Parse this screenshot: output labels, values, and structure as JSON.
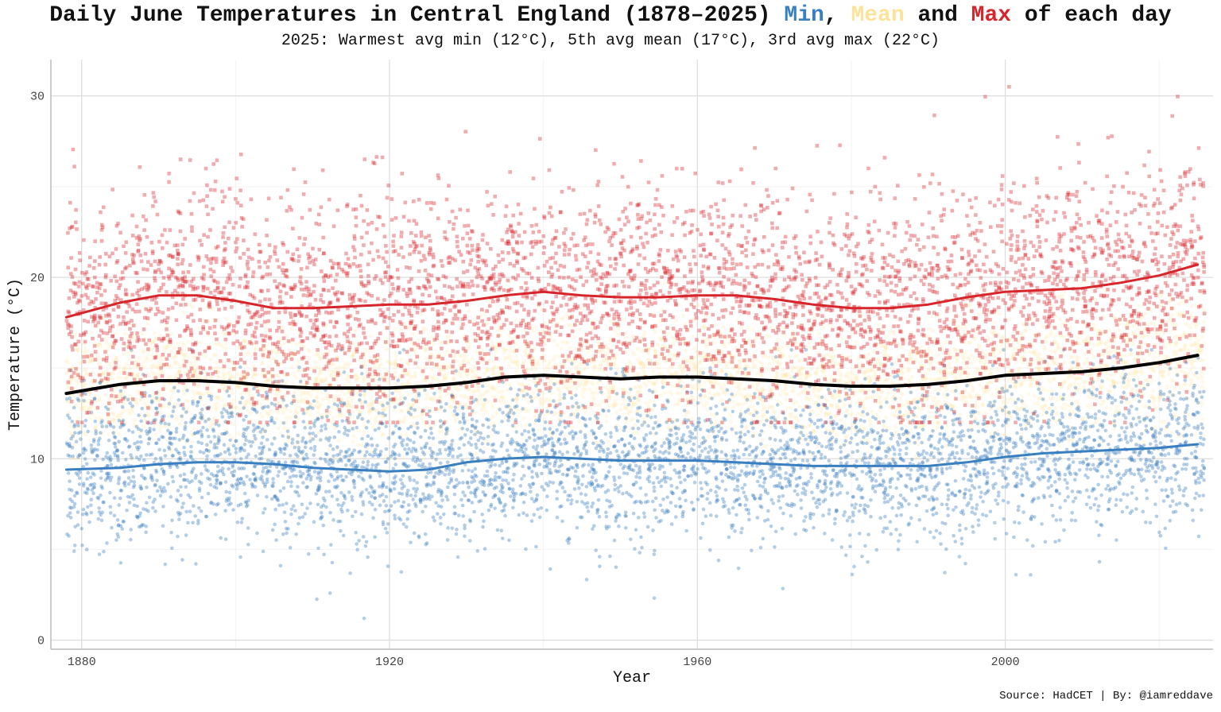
{
  "title": {
    "prefix": "Daily June Temperatures in Central England (1878–2025) ",
    "min_word": "Min",
    "sep1": ", ",
    "mean_word": "Mean",
    "sep2": " and ",
    "max_word": "Max",
    "suffix": " of each day"
  },
  "subtitle": "2025: Warmest avg min (12°C), 5th avg mean (17°C), 3rd avg max (22°C)",
  "caption": "Source: HadCET | By: @iamreddave",
  "chart_data": {
    "type": "scatter",
    "xlabel": "Year",
    "ylabel": "Temperature (°C)",
    "xlim": [
      1876,
      2027
    ],
    "ylim": [
      -0.5,
      32
    ],
    "x_ticks": [
      1880,
      1920,
      1960,
      2000
    ],
    "y_ticks": [
      0,
      10,
      20,
      30
    ],
    "grid": true,
    "colors": {
      "min": "#3a7fbf",
      "mean": "#fde39a",
      "max": "#d7262b",
      "mean_trend": "#000000"
    },
    "point_cloud": {
      "note": "one point per June day per series",
      "min": {
        "typical_range": [
          4,
          15
        ],
        "extreme_low": 1.2,
        "extreme_high": 16
      },
      "mean": {
        "typical_range": [
          11,
          19
        ]
      },
      "max": {
        "typical_range": [
          14,
          27
        ],
        "extreme_low": 12,
        "extreme_high": 30.5
      }
    },
    "series": [
      {
        "name": "Max",
        "kind": "smoothed trend",
        "x": [
          1878,
          1885,
          1890,
          1895,
          1900,
          1905,
          1910,
          1915,
          1920,
          1925,
          1930,
          1935,
          1940,
          1945,
          1950,
          1955,
          1960,
          1965,
          1970,
          1975,
          1980,
          1985,
          1990,
          1995,
          2000,
          2005,
          2010,
          2015,
          2020,
          2025
        ],
        "values": [
          17.8,
          18.6,
          19.0,
          19.0,
          18.7,
          18.3,
          18.3,
          18.4,
          18.5,
          18.5,
          18.7,
          19.0,
          19.2,
          19.0,
          18.9,
          18.9,
          19.0,
          19.0,
          18.8,
          18.5,
          18.3,
          18.3,
          18.5,
          18.9,
          19.2,
          19.3,
          19.4,
          19.7,
          20.1,
          20.7
        ]
      },
      {
        "name": "Mean",
        "kind": "smoothed trend",
        "x": [
          1878,
          1885,
          1890,
          1895,
          1900,
          1905,
          1910,
          1915,
          1920,
          1925,
          1930,
          1935,
          1940,
          1945,
          1950,
          1955,
          1960,
          1965,
          1970,
          1975,
          1980,
          1985,
          1990,
          1995,
          2000,
          2005,
          2010,
          2015,
          2020,
          2025
        ],
        "values": [
          13.6,
          14.1,
          14.3,
          14.3,
          14.2,
          14.0,
          13.9,
          13.9,
          13.9,
          14.0,
          14.2,
          14.5,
          14.6,
          14.5,
          14.4,
          14.5,
          14.5,
          14.4,
          14.3,
          14.1,
          14.0,
          14.0,
          14.1,
          14.3,
          14.6,
          14.7,
          14.8,
          15.0,
          15.3,
          15.7
        ]
      },
      {
        "name": "Min",
        "kind": "smoothed trend",
        "x": [
          1878,
          1885,
          1890,
          1895,
          1900,
          1905,
          1910,
          1915,
          1920,
          1925,
          1930,
          1935,
          1940,
          1945,
          1950,
          1955,
          1960,
          1965,
          1970,
          1975,
          1980,
          1985,
          1990,
          1995,
          2000,
          2005,
          2010,
          2015,
          2020,
          2025
        ],
        "values": [
          9.4,
          9.5,
          9.7,
          9.8,
          9.8,
          9.7,
          9.5,
          9.4,
          9.3,
          9.4,
          9.8,
          10.0,
          10.1,
          10.0,
          9.9,
          9.9,
          9.9,
          9.8,
          9.7,
          9.6,
          9.6,
          9.6,
          9.6,
          9.8,
          10.1,
          10.3,
          10.4,
          10.5,
          10.6,
          10.8
        ]
      }
    ]
  }
}
